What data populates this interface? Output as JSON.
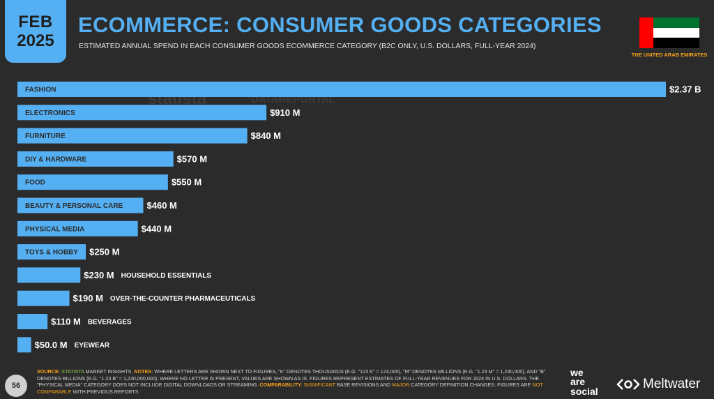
{
  "header": {
    "month": "FEB",
    "year": "2025",
    "title": "ECOMMERCE: CONSUMER GOODS CATEGORIES",
    "subtitle": "ESTIMATED ANNUAL SPEND IN EACH CONSUMER GOODS ECOMMERCE CATEGORY (B2C ONLY, U.S. DOLLARS, FULL-YEAR 2024)"
  },
  "country": {
    "name": "THE UNITED ARAB EMIRATES",
    "flag_icon": "uae-flag-icon",
    "flag_colors": {
      "red": "#ff0000",
      "green": "#00732f",
      "white": "#ffffff",
      "black": "#000000"
    }
  },
  "watermarks": [
    "statista",
    "DATAREPORTAL"
  ],
  "colors": {
    "accent": "#55b0f3",
    "highlight": "#f7a21b",
    "source_green": "#8fd14f",
    "background": "#2b2b2b"
  },
  "chart_data": {
    "type": "bar",
    "orientation": "horizontal",
    "categories": [
      "FASHION",
      "ELECTRONICS",
      "FURNITURE",
      "DIY & HARDWARE",
      "FOOD",
      "BEAUTY & PERSONAL CARE",
      "PHYSICAL MEDIA",
      "TOYS & HOBBY",
      "HOUSEHOLD ESSENTIALS",
      "OVER-THE-COUNTER PHARMACEUTICALS",
      "BEVERAGES",
      "EYEWEAR"
    ],
    "values": [
      2370,
      910,
      840,
      570,
      550,
      460,
      440,
      250,
      230,
      190,
      110,
      50
    ],
    "value_labels": [
      "$2.37 B",
      "$910 M",
      "$840 M",
      "$570 M",
      "$550 M",
      "$460 M",
      "$440 M",
      "$250 M",
      "$230 M",
      "$190 M",
      "$110 M",
      "$50.0 M"
    ],
    "unit": "USD millions",
    "xlim": [
      0,
      2370
    ],
    "grid": false,
    "legend": "none",
    "bar_color": "#55b0f3"
  },
  "footer": {
    "source_label": "SOURCE:",
    "source_name": "STATISTA",
    "source_rest": " MARKET INSIGHTS. ",
    "notes_label": "NOTES:",
    "notes_text": " WHERE LETTERS ARE SHOWN NEXT TO FIGURES, \"K\" DENOTES THOUSANDS (E.G. \"123 K\" = 123,000), \"M\" DENOTES MILLIONS (E.G. \"1.23 M\" = 1,230,000), AND \"B\" DENOTES BILLIONS (E.G. \"1.23 B\" = 1,230,000,000). WHERE NO LETTER IS PRESENT, VALUES ARE SHOWN AS IS. FIGURES REPRESENT ESTIMATES OF FULL-YEAR REVENUES FOR 2024 IN U.S. DOLLARS. THE \"PHYSICAL MEDIA\" CATEGORY DOES NOT INCLUDE DIGITAL DOWNLOADS OR STREAMING. ",
    "comparability_label": "COMPARABILITY:",
    "comparability_sig": " SIGNIFICANT",
    "comparability_mid": " BASE REVISIONS AND ",
    "comparability_major": "MAJOR",
    "comparability_rest": " CATEGORY DEFINITION CHANGES. FIGURES ARE ",
    "comparability_not": "NOT COMPARABLE",
    "comparability_end": " WITH PREVIOUS REPORTS",
    "page_number": "56"
  },
  "brands": {
    "wearesocial": [
      "we",
      "are",
      "social"
    ],
    "meltwater": "Meltwater",
    "meltwater_icon": "meltwater-logo-icon"
  }
}
